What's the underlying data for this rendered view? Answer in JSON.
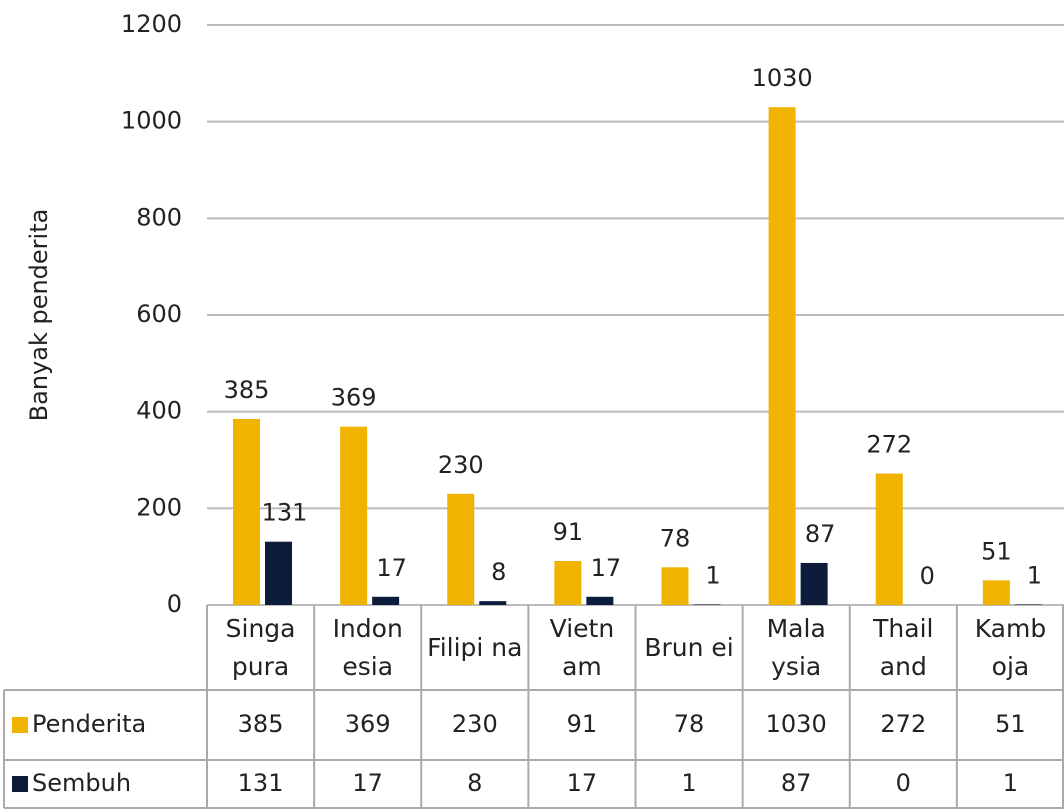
{
  "chart_data": {
    "type": "bar",
    "y_label": "Banyak penderita",
    "categories": [
      "Singa pura",
      "Indon esia",
      "Filipi na",
      "Vietn am",
      "Brun ei",
      "Mala ysia",
      "Thail and",
      "Kamb oja"
    ],
    "series": [
      {
        "name": "Penderita",
        "color": "#f0b400",
        "values": [
          385,
          369,
          230,
          91,
          78,
          1030,
          272,
          51
        ]
      },
      {
        "name": "Sembuh",
        "color": "#0e1c3c",
        "values": [
          131,
          17,
          8,
          17,
          1,
          87,
          0,
          1
        ]
      }
    ],
    "ylim": [
      0,
      1200
    ],
    "yticks": [
      0,
      200,
      400,
      600,
      800,
      1000,
      1200
    ],
    "grid": true
  }
}
